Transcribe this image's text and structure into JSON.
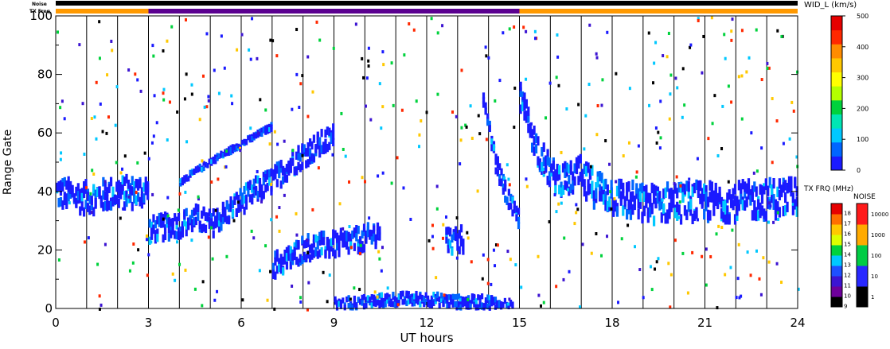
{
  "chart_data": {
    "type": "heatmap",
    "title": "",
    "xlabel": "UT hours",
    "ylabel": "Range Gate",
    "xlim": [
      0,
      24
    ],
    "ylim": [
      0,
      100
    ],
    "x_ticks": [
      "0",
      "3",
      "6",
      "9",
      "12",
      "15",
      "18",
      "21",
      "24"
    ],
    "y_ticks": [
      "0",
      "20",
      "40",
      "60",
      "80",
      "100"
    ],
    "grid": "vertical lines every hour",
    "top_strips": {
      "noise_label": "Noise",
      "txfreq_label": "TX Freq",
      "txfreq_segments": [
        {
          "start": 0,
          "end": 3,
          "color": "#ff9900"
        },
        {
          "start": 3,
          "end": 15,
          "color": "#5a0090"
        },
        {
          "start": 15,
          "end": 24,
          "color": "#ff9900"
        }
      ]
    },
    "color_scales": {
      "width": {
        "label": "WID_L (km/s)",
        "ticks": [
          "0",
          "100",
          "200",
          "300",
          "400",
          "500"
        ],
        "colors": [
          "#1a1aff",
          "#0066ff",
          "#00c8ff",
          "#00e6b4",
          "#00d23c",
          "#b4ff00",
          "#ffff00",
          "#ffc800",
          "#ff8c00",
          "#ff2800",
          "#e60000"
        ]
      },
      "txfreq": {
        "label": "TX FRQ (MHz)",
        "ticks": [
          "9",
          "10",
          "11",
          "12",
          "13",
          "14",
          "15",
          "16",
          "17",
          "18"
        ],
        "colors": [
          "#000000",
          "#6e009b",
          "#3c14d2",
          "#1e50ff",
          "#00c8ff",
          "#00d23c",
          "#dcff00",
          "#ffc800",
          "#ff6e00",
          "#e60000"
        ]
      },
      "noise": {
        "label": "NOISE",
        "ticks": [
          "1",
          "10",
          "100",
          "1000",
          "10000"
        ],
        "colors": [
          "#000000",
          "#2828ff",
          "#00cc44",
          "#ffaa00",
          "#ff1a1a"
        ]
      }
    },
    "series": [
      {
        "x": [
          0,
          0.5,
          1,
          1.5,
          2,
          2.5,
          3
        ],
        "y": [
          40,
          39,
          38,
          39,
          40,
          40,
          41
        ],
        "spread": 5
      },
      {
        "x": [
          3,
          3.5,
          4,
          4.5,
          5,
          5.5,
          6,
          6.5,
          7,
          7.5,
          8,
          8.5,
          9
        ],
        "y": [
          27,
          28,
          29,
          31,
          29,
          33,
          37,
          41,
          44,
          49,
          53,
          56,
          59
        ],
        "spread": 4
      },
      {
        "x": [
          4,
          5,
          6,
          7
        ],
        "y": [
          43,
          50,
          56,
          62
        ],
        "spread": 1
      },
      {
        "x": [
          7,
          7.5,
          8,
          9,
          10,
          10.5
        ],
        "y": [
          15,
          17,
          21,
          22,
          24,
          27
        ],
        "spread": 4
      },
      {
        "x": [
          9,
          10,
          11,
          12,
          13,
          14,
          14.8
        ],
        "y": [
          1,
          2,
          3,
          3,
          2,
          2,
          0
        ],
        "spread": 2
      },
      {
        "x": [
          12.6,
          12.9,
          13.2
        ],
        "y": [
          24,
          23,
          24
        ],
        "spread": 4
      },
      {
        "x": [
          13.8,
          14,
          14.2,
          14.5,
          14.8,
          15
        ],
        "y": [
          70,
          60,
          50,
          40,
          33,
          30
        ],
        "spread": 3
      },
      {
        "x": [
          15,
          15.5,
          16,
          16.5,
          17
        ],
        "y": [
          72,
          56,
          46,
          44,
          47
        ],
        "spread": 5
      },
      {
        "x": [
          17,
          18,
          19,
          20,
          21,
          22,
          23,
          24
        ],
        "y": [
          44,
          39,
          36,
          37,
          37,
          37,
          38,
          39
        ],
        "spread": 6
      }
    ]
  }
}
